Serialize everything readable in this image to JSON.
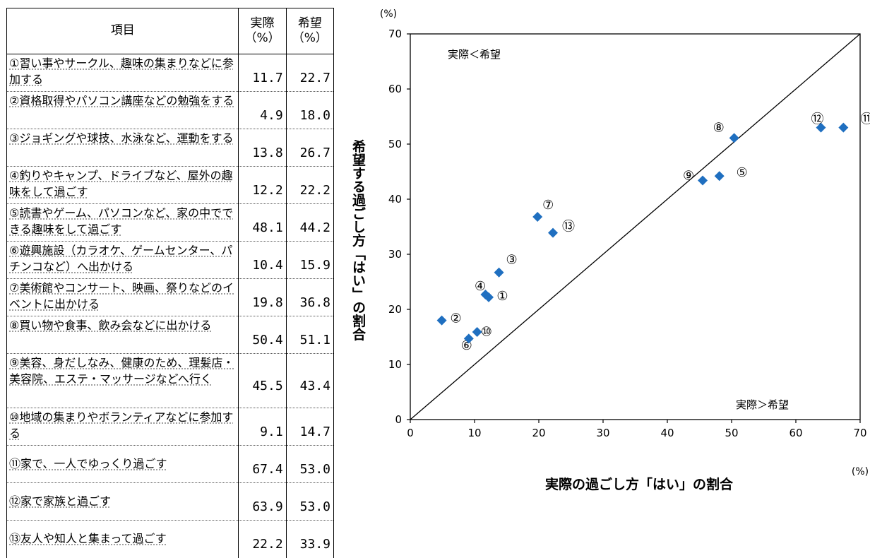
{
  "table": {
    "headers": {
      "item": "項目",
      "actual": "実際\n（%）",
      "desired": "希望\n（%）"
    },
    "rows": [
      {
        "item": "①習い事やサークル、趣味の集まりなどに参加する",
        "actual": "11.7",
        "desired": "22.7"
      },
      {
        "item": "②資格取得やパソコン講座などの勉強をする",
        "actual": "4.9",
        "desired": "18.0"
      },
      {
        "item": "③ジョギングや球技、水泳など、運動をする",
        "actual": "13.8",
        "desired": "26.7"
      },
      {
        "item": "④釣りやキャンプ、ドライブなど、屋外の趣味をして過ごす",
        "actual": "12.2",
        "desired": "22.2"
      },
      {
        "item": "⑤読書やゲーム、パソコンなど、家の中でできる趣味をして過ごす",
        "actual": "48.1",
        "desired": "44.2"
      },
      {
        "item": "⑥遊興施設（カラオケ、ゲームセンター、パチンコなど）へ出かける",
        "actual": "10.4",
        "desired": "15.9"
      },
      {
        "item": "⑦美術館やコンサート、映画、祭りなどのイベントに出かける",
        "actual": "19.8",
        "desired": "36.8"
      },
      {
        "item": "⑧買い物や食事、飲み会などに出かける",
        "actual": "50.4",
        "desired": "51.1"
      },
      {
        "item": "⑨美容、身だしなみ、健康のため、理髪店・美容院、エステ・マッサージなどへ行く",
        "actual": "45.5",
        "desired": "43.4"
      },
      {
        "item": "⑩地域の集まりやボランティアなどに参加する",
        "actual": "9.1",
        "desired": "14.7"
      },
      {
        "item": "⑪家で、一人でゆっくり過ごす",
        "actual": "67.4",
        "desired": "53.0"
      },
      {
        "item": "⑫家で家族と過ごす",
        "actual": "63.9",
        "desired": "53.0"
      },
      {
        "item": "⑬友人や知人と集まって過ごす",
        "actual": "22.2",
        "desired": "33.9"
      }
    ]
  },
  "chart_data": {
    "type": "scatter",
    "xlabel": "実際の過ごし方「はい」の割合",
    "ylabel": "希望する過ごし方「はい」の割合",
    "x_unit": "(%)",
    "y_unit": "(%)",
    "xlim": [
      0,
      70
    ],
    "ylim": [
      0,
      70
    ],
    "x_ticks": [
      "0",
      "10",
      "20",
      "30",
      "40",
      "50",
      "60",
      "70"
    ],
    "y_ticks": [
      "0",
      "10",
      "20",
      "30",
      "40",
      "50",
      "60",
      "70"
    ],
    "diagonal_line": true,
    "region_labels": {
      "upper_left": "実際＜希望",
      "lower_right": "実際＞希望"
    },
    "marker_color": "#1f6fc0",
    "points": [
      {
        "label": "①",
        "x": 11.7,
        "y": 22.7
      },
      {
        "label": "②",
        "x": 4.9,
        "y": 18.0
      },
      {
        "label": "③",
        "x": 13.8,
        "y": 26.7
      },
      {
        "label": "④",
        "x": 12.2,
        "y": 22.2
      },
      {
        "label": "⑤",
        "x": 48.1,
        "y": 44.2
      },
      {
        "label": "⑥",
        "x": 10.4,
        "y": 15.9
      },
      {
        "label": "⑦",
        "x": 19.8,
        "y": 36.8
      },
      {
        "label": "⑧",
        "x": 50.4,
        "y": 51.1
      },
      {
        "label": "⑨",
        "x": 45.5,
        "y": 43.4
      },
      {
        "label": "⑩",
        "x": 9.1,
        "y": 14.7
      },
      {
        "label": "⑪",
        "x": 67.4,
        "y": 53.0
      },
      {
        "label": "⑫",
        "x": 63.9,
        "y": 53.0
      },
      {
        "label": "⑬",
        "x": 22.2,
        "y": 33.9
      }
    ]
  }
}
